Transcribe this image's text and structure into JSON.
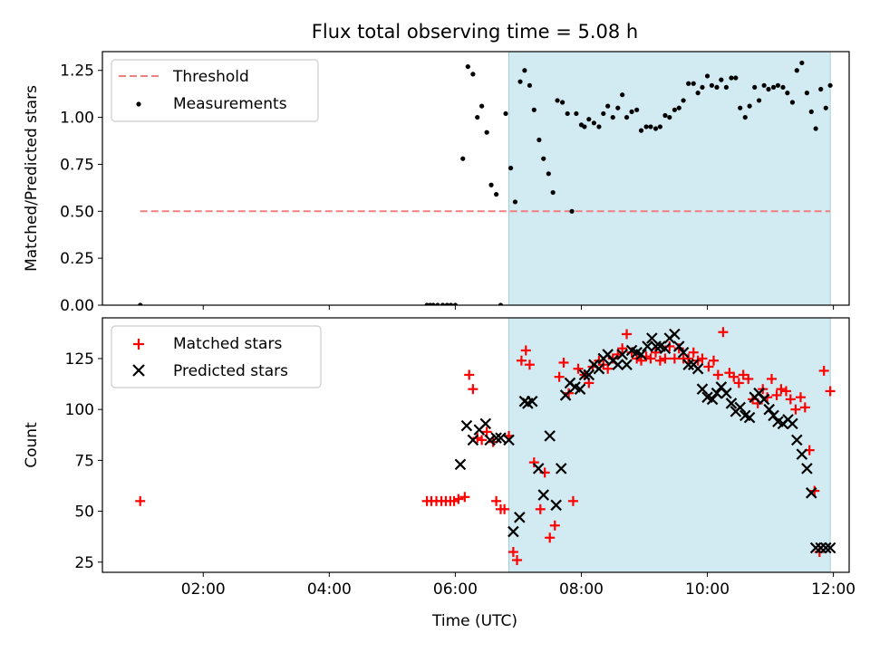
{
  "figure_title": "Flux total observing time = 5.08 h",
  "colors": {
    "threshold": "#f08080",
    "measurement": "#000000",
    "matched": "#ff0000",
    "predicted": "#000000",
    "shade": "#add8e6"
  },
  "chart_data": [
    {
      "type": "scatter",
      "title": "Flux total observing time = 5.08 h",
      "ylabel": "Matched/Predicted stars",
      "xlim": [
        0.4,
        12.25
      ],
      "ylim": [
        0.0,
        1.35
      ],
      "x_ticks": [
        2,
        4,
        6,
        8,
        10,
        12
      ],
      "x_tick_labels": [
        "02:00",
        "04:00",
        "06:00",
        "08:00",
        "10:00",
        "12:00"
      ],
      "y_ticks": [
        0.0,
        0.25,
        0.5,
        0.75,
        1.0,
        1.25
      ],
      "y_tick_labels": [
        "0.00",
        "0.25",
        "0.50",
        "0.75",
        "1.00",
        "1.25"
      ],
      "shaded_span": [
        6.85,
        11.95
      ],
      "legend": {
        "placement": "upper-left",
        "entries": [
          "Threshold",
          "Measurements"
        ]
      },
      "threshold": {
        "name": "Threshold",
        "y": 0.5,
        "x_range": [
          1.0,
          11.95
        ]
      },
      "measurements": {
        "name": "Measurements",
        "x": [
          1.0,
          5.55,
          5.6,
          5.65,
          5.72,
          5.8,
          5.87,
          5.93,
          6.0,
          6.12,
          6.2,
          6.28,
          6.35,
          6.42,
          6.5,
          6.57,
          6.65,
          6.72,
          6.8,
          6.88,
          6.95,
          7.03,
          7.1,
          7.18,
          7.25,
          7.33,
          7.4,
          7.48,
          7.55,
          7.62,
          7.7,
          7.78,
          7.85,
          7.92,
          8.0,
          8.05,
          8.12,
          8.2,
          8.28,
          8.35,
          8.42,
          8.5,
          8.58,
          8.65,
          8.72,
          8.8,
          8.88,
          8.95,
          9.03,
          9.1,
          9.18,
          9.25,
          9.33,
          9.4,
          9.48,
          9.55,
          9.62,
          9.7,
          9.78,
          9.85,
          9.92,
          10.0,
          10.07,
          10.15,
          10.22,
          10.3,
          10.38,
          10.45,
          10.52,
          10.6,
          10.67,
          10.75,
          10.82,
          10.9,
          10.97,
          11.05,
          11.12,
          11.2,
          11.27,
          11.35,
          11.42,
          11.5,
          11.58,
          11.65,
          11.72,
          11.8,
          11.88,
          11.95
        ],
        "y": [
          0.0,
          0.0,
          0.0,
          0.0,
          0.0,
          0.0,
          0.0,
          0.0,
          0.0,
          0.78,
          1.27,
          1.23,
          1.0,
          1.06,
          0.92,
          0.64,
          0.59,
          0.0,
          1.02,
          0.73,
          0.55,
          1.19,
          1.25,
          1.17,
          1.04,
          0.88,
          0.78,
          0.7,
          0.6,
          1.09,
          1.08,
          1.02,
          0.5,
          1.02,
          0.96,
          0.95,
          0.99,
          0.97,
          0.95,
          1.02,
          1.06,
          1.0,
          1.05,
          1.12,
          1.0,
          1.03,
          1.04,
          0.93,
          0.95,
          0.95,
          0.94,
          0.95,
          1.01,
          1.0,
          1.04,
          1.05,
          1.09,
          1.18,
          1.18,
          1.13,
          1.16,
          1.22,
          1.17,
          1.16,
          1.2,
          1.16,
          1.21,
          1.21,
          1.05,
          1.0,
          1.06,
          1.16,
          1.09,
          1.17,
          1.15,
          1.16,
          1.17,
          1.16,
          1.13,
          1.08,
          1.25,
          1.29,
          1.13,
          1.03,
          0.94,
          1.15,
          1.05,
          1.17
        ]
      }
    },
    {
      "type": "scatter",
      "xlabel": "Time (UTC)",
      "ylabel": "Count",
      "xlim": [
        0.4,
        12.25
      ],
      "ylim": [
        20,
        145
      ],
      "x_ticks": [
        2,
        4,
        6,
        8,
        10,
        12
      ],
      "x_tick_labels": [
        "02:00",
        "04:00",
        "06:00",
        "08:00",
        "10:00",
        "12:00"
      ],
      "y_ticks": [
        25,
        50,
        75,
        100,
        125
      ],
      "y_tick_labels": [
        "25",
        "50",
        "75",
        "100",
        "125"
      ],
      "shaded_span": [
        6.85,
        11.95
      ],
      "legend": {
        "placement": "upper-left",
        "entries": [
          "Matched stars",
          "Predicted stars"
        ]
      },
      "series": [
        {
          "name": "Matched stars",
          "marker": "plus",
          "x": [
            1.0,
            5.55,
            5.62,
            5.7,
            5.78,
            5.85,
            5.92,
            5.98,
            6.05,
            6.15,
            6.22,
            6.28,
            6.35,
            6.42,
            6.5,
            6.6,
            6.65,
            6.72,
            6.78,
            6.85,
            6.92,
            6.98,
            7.05,
            7.12,
            7.18,
            7.25,
            7.35,
            7.42,
            7.5,
            7.58,
            7.65,
            7.72,
            7.8,
            7.87,
            7.95,
            8.05,
            8.12,
            8.18,
            8.28,
            8.35,
            8.42,
            8.5,
            8.58,
            8.65,
            8.72,
            8.8,
            8.88,
            8.95,
            9.03,
            9.1,
            9.18,
            9.25,
            9.33,
            9.4,
            9.48,
            9.55,
            9.62,
            9.7,
            9.78,
            9.85,
            9.92,
            10.02,
            10.1,
            10.17,
            10.25,
            10.35,
            10.42,
            10.5,
            10.57,
            10.65,
            10.72,
            10.8,
            10.88,
            10.95,
            11.02,
            11.1,
            11.17,
            11.25,
            11.32,
            11.4,
            11.48,
            11.55,
            11.62,
            11.7,
            11.78,
            11.85,
            11.95
          ],
          "y": [
            55,
            55,
            55,
            55,
            55,
            55,
            55,
            55,
            56,
            57,
            117,
            110,
            86,
            85,
            89,
            84,
            55,
            51,
            51,
            87,
            30,
            26,
            124,
            129,
            122,
            74,
            51,
            69,
            37,
            43,
            116,
            123,
            108,
            55,
            120,
            117,
            113,
            121,
            124,
            122,
            120,
            125,
            127,
            130,
            137,
            128,
            125,
            124,
            126,
            125,
            128,
            124,
            125,
            131,
            125,
            130,
            125,
            125,
            128,
            124,
            125,
            121,
            124,
            117,
            138,
            118,
            116,
            113,
            117,
            115,
            105,
            103,
            110,
            106,
            115,
            107,
            110,
            109,
            105,
            100,
            106,
            101,
            80,
            60,
            30,
            119,
            109
          ]
        },
        {
          "name": "Predicted stars",
          "marker": "x",
          "x": [
            6.08,
            6.18,
            6.28,
            6.38,
            6.48,
            6.55,
            6.65,
            6.72,
            6.85,
            6.92,
            7.02,
            7.1,
            7.15,
            7.22,
            7.32,
            7.4,
            7.5,
            7.6,
            7.68,
            7.75,
            7.82,
            7.9,
            7.98,
            8.05,
            8.12,
            8.2,
            8.28,
            8.35,
            8.42,
            8.5,
            8.58,
            8.65,
            8.72,
            8.8,
            8.88,
            8.95,
            9.05,
            9.12,
            9.18,
            9.25,
            9.33,
            9.4,
            9.48,
            9.55,
            9.62,
            9.7,
            9.78,
            9.85,
            9.92,
            10.0,
            10.08,
            10.15,
            10.22,
            10.3,
            10.38,
            10.45,
            10.52,
            10.6,
            10.67,
            10.75,
            10.82,
            10.9,
            10.98,
            11.05,
            11.12,
            11.2,
            11.28,
            11.35,
            11.42,
            11.5,
            11.58,
            11.65,
            11.72,
            11.8,
            11.88,
            11.95
          ],
          "y": [
            73,
            92,
            85,
            90,
            93,
            85,
            86,
            86,
            85,
            40,
            47,
            104,
            103,
            104,
            71,
            58,
            87,
            53,
            71,
            107,
            113,
            111,
            110,
            117,
            117,
            122,
            120,
            125,
            127,
            124,
            122,
            127,
            122,
            129,
            128,
            127,
            131,
            135,
            131,
            131,
            130,
            135,
            137,
            131,
            128,
            122,
            122,
            120,
            110,
            106,
            105,
            108,
            111,
            108,
            103,
            99,
            101,
            97,
            96,
            106,
            108,
            105,
            100,
            97,
            94,
            93,
            95,
            93,
            85,
            78,
            71,
            59,
            32,
            32,
            32,
            32
          ]
        }
      ]
    }
  ]
}
